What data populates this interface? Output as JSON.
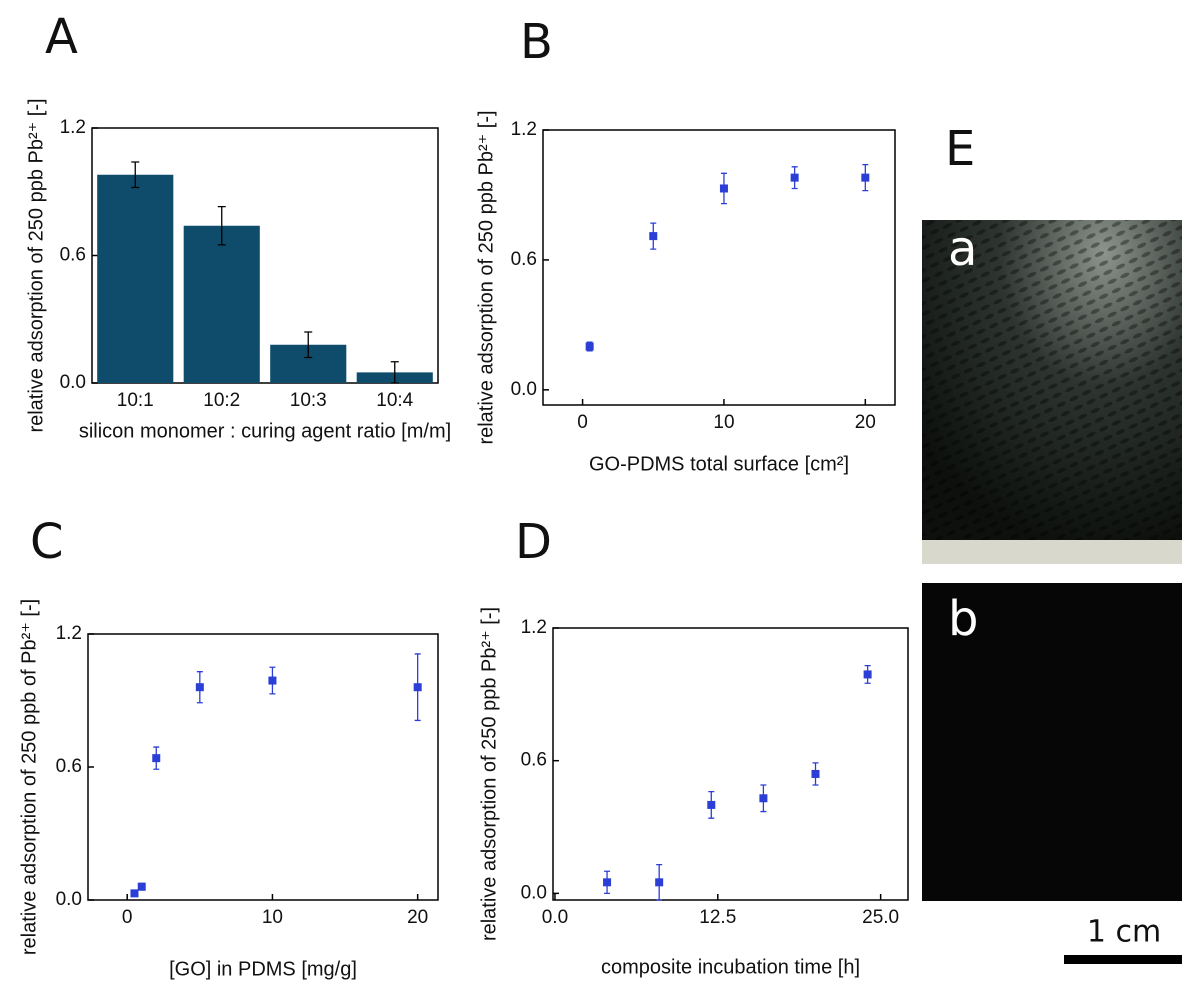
{
  "chart_data": [
    {
      "type": "bar",
      "label": "A",
      "ylabel": "relative adsorption of 250 ppb Pb²⁺ [-]",
      "xlabel": "silicon monomer : curing agent ratio [m/m]",
      "categories": [
        "10:1",
        "10:2",
        "10:3",
        "10:4"
      ],
      "values": [
        0.98,
        0.74,
        0.18,
        0.05
      ],
      "errors": [
        0.06,
        0.09,
        0.06,
        0.05
      ],
      "color": "#0f4c6b",
      "ylim": [
        0,
        1.2
      ],
      "yticks": [
        {
          "value": 0,
          "label": "0.0"
        },
        0.6,
        1.2
      ]
    },
    {
      "type": "scatter",
      "label": "B",
      "ylabel": "relative adsorption of 250 ppb Pb²⁺ [-]",
      "xlabel": "GO-PDMS total surface [cm²]",
      "x": [
        0.5,
        5,
        10,
        15,
        20
      ],
      "values": [
        0.2,
        0.71,
        0.93,
        0.98,
        0.98
      ],
      "errors": [
        0.02,
        0.06,
        0.07,
        0.05,
        0.06
      ],
      "color": "#2b3fd6",
      "xlim": [
        -2.8,
        22.1
      ],
      "xticks": [
        0,
        10,
        20
      ],
      "ylim": [
        -0.07,
        1.2
      ],
      "yticks": [
        {
          "value": 0,
          "label": "0.0"
        },
        0.6,
        1.2
      ]
    },
    {
      "type": "scatter",
      "label": "C",
      "ylabel": "relative adsorption of 250 ppb of Pb²⁺ [-]",
      "xlabel": "[GO] in PDMS [mg/g]",
      "x": [
        0.5,
        1,
        2,
        5,
        10,
        20
      ],
      "values": [
        0.03,
        0.06,
        0.64,
        0.96,
        0.99,
        0.96
      ],
      "errors": [
        0.01,
        0.015,
        0.05,
        0.07,
        0.06,
        0.15
      ],
      "color": "#2b3fd6",
      "xlim": [
        -2.7,
        21.4
      ],
      "xticks": [
        0,
        10,
        20
      ],
      "ylim": [
        0,
        1.2
      ],
      "yticks": [
        {
          "value": 0,
          "label": "0.0"
        },
        0.6,
        1.2
      ]
    },
    {
      "type": "scatter",
      "label": "D",
      "ylabel": "relative adsorption of 250 ppb Pb²⁺ [-]",
      "xlabel": "composite incubation time [h]",
      "x": [
        4,
        8,
        12,
        16,
        20,
        24
      ],
      "values": [
        0.05,
        0.05,
        0.4,
        0.43,
        0.54,
        0.99
      ],
      "errors": [
        0.05,
        0.08,
        0.06,
        0.06,
        0.05,
        0.04
      ],
      "color": "#2b3fd6",
      "xlim": [
        -0.15,
        27.1
      ],
      "xticks": [
        {
          "value": 0,
          "label": "0.0"
        },
        12.5,
        {
          "value": 25,
          "label": "25.0"
        }
      ],
      "ylim": [
        -0.03,
        1.2
      ],
      "yticks": [
        {
          "value": 0,
          "label": "0.0"
        },
        0.6,
        1.2
      ]
    }
  ],
  "panel_e": {
    "label": "E",
    "images": [
      "a",
      "b"
    ],
    "scale_bar": "1 cm"
  }
}
